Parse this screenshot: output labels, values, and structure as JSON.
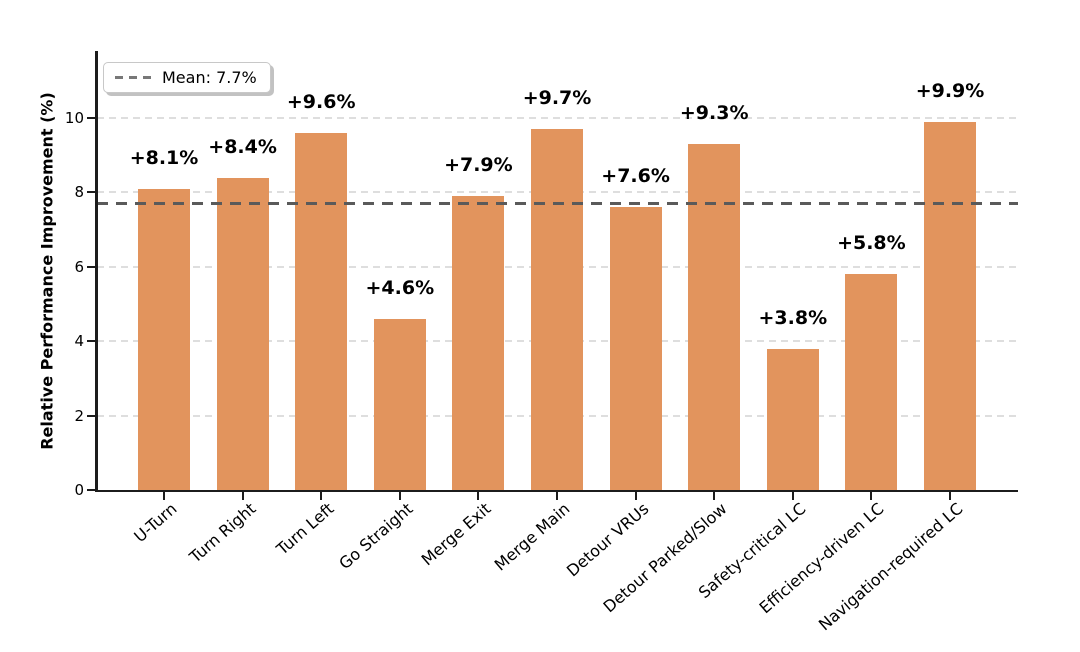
{
  "chart_data": {
    "type": "bar",
    "title": "",
    "categories": [
      "U-Turn",
      "Turn Right",
      "Turn Left",
      "Go Straight",
      "Merge Exit",
      "Merge Main",
      "Detour VRUs",
      "Detour Parked/Slow",
      "Safety-critical LC",
      "Efficiency-driven LC",
      "Navigation-required LC"
    ],
    "values": [
      8.1,
      8.4,
      9.6,
      4.6,
      7.9,
      9.7,
      7.6,
      9.3,
      3.8,
      5.8,
      9.9
    ],
    "bar_labels": [
      "+8.1%",
      "+8.4%",
      "+9.6%",
      "+4.6%",
      "+7.9%",
      "+9.7%",
      "+7.6%",
      "+9.3%",
      "+3.8%",
      "+5.8%",
      "+9.9%"
    ],
    "mean_value": 7.7,
    "ylabel": "Relative Performance Improvement (%)",
    "xlabel": "",
    "yticks": [
      0,
      2,
      4,
      6,
      8,
      10
    ],
    "ytick_labels": [
      "0",
      "2",
      "4",
      "6",
      "8",
      "10"
    ],
    "ylim": [
      0,
      11.8
    ],
    "grid": "horizontal-dashed",
    "legend_position": "upper-left",
    "legend": {
      "label": "Mean: 7.7%"
    },
    "colors": {
      "bar": "#e2945d",
      "mean_line": "#5a5a5a",
      "grid": "#dedede",
      "axis": "#1c1c1c",
      "text": "#000000"
    }
  }
}
